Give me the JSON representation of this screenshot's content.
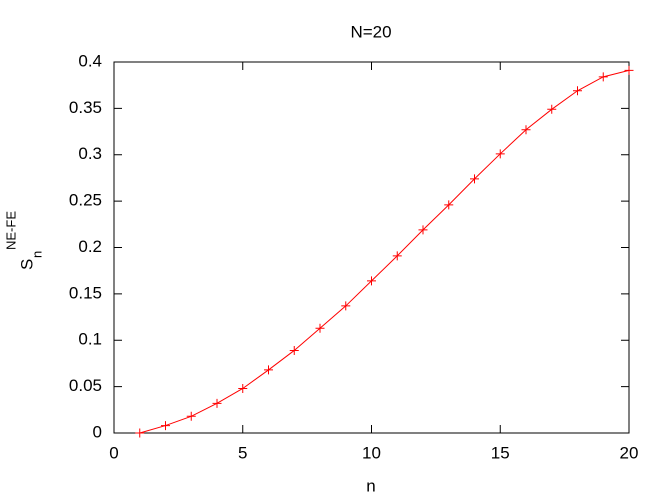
{
  "chart_data": {
    "type": "line",
    "title": "N=20",
    "xlabel": "n",
    "ylabel": {
      "base": "S",
      "sub": "n",
      "sup": "NE-FE"
    },
    "series": [
      {
        "color": "#ff0000",
        "x": [
          1,
          2,
          3,
          4,
          5,
          6,
          7,
          8,
          9,
          10,
          11,
          12,
          13,
          14,
          15,
          16,
          17,
          18,
          19,
          20
        ],
        "values": [
          0,
          0.008,
          0.018,
          0.032,
          0.048,
          0.068,
          0.089,
          0.113,
          0.137,
          0.164,
          0.191,
          0.219,
          0.246,
          0.274,
          0.301,
          0.327,
          0.349,
          0.369,
          0.384,
          0.391
        ]
      }
    ],
    "xlim": [
      0,
      20
    ],
    "xticks": [
      0,
      5,
      10,
      15,
      20
    ],
    "ylim": [
      0,
      0.4
    ],
    "yticks": [
      0,
      0.05,
      0.1,
      0.15,
      0.2,
      0.25,
      0.3,
      0.35,
      0.4
    ]
  }
}
